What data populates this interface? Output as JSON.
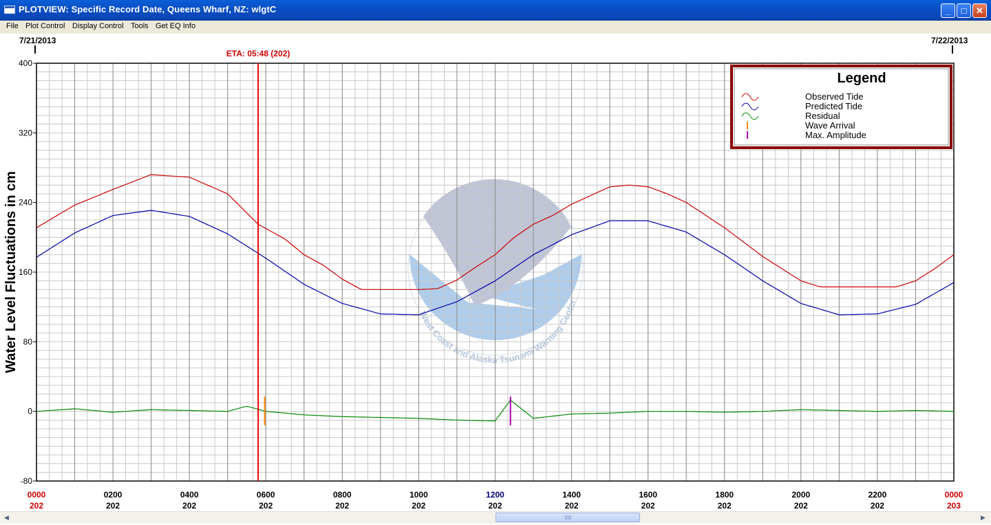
{
  "window": {
    "title": "PLOTVIEW: Specific Record Date, Queens Wharf, NZ: wlgtC",
    "buttons": [
      "minimize-icon",
      "maximize-icon",
      "close-icon"
    ]
  },
  "menu": [
    "File",
    "Plot Control",
    "Display Control",
    "Tools",
    "Get EQ Info"
  ],
  "dates": {
    "left": "7/21/2013",
    "right": "7/22/2013"
  },
  "eta_label": "ETA: 05:48 (202)",
  "legend": {
    "title": "Legend",
    "items": [
      "Observed Tide",
      "Predicted Tide",
      "Residual",
      "Wave Arrival",
      "Max. Amplitude"
    ]
  },
  "colors": {
    "observed": "#cc0000",
    "predicted": "#0000aa",
    "residual": "#008800",
    "wave_arrival": "#ff8800",
    "max_amplitude": "#aa00aa",
    "eta_line": "#ee0000",
    "legend_border": "#8b0000"
  },
  "watermark_text": "West Coast and Alaska Tsunami Warning Center",
  "chart_data": {
    "type": "line",
    "ylabel": "Water Level Fluctuations in cm",
    "ylim": [
      -80,
      400
    ],
    "yticks": [
      "400",
      "320",
      "240",
      "160",
      "80",
      "0",
      "-80"
    ],
    "xlim_hours": [
      0,
      24
    ],
    "xticks": [
      {
        "time": "0000",
        "day": "202"
      },
      {
        "time": "0200",
        "day": "202"
      },
      {
        "time": "0400",
        "day": "202"
      },
      {
        "time": "0600",
        "day": "202"
      },
      {
        "time": "0800",
        "day": "202"
      },
      {
        "time": "1000",
        "day": "202"
      },
      {
        "time": "1200",
        "day": "202"
      },
      {
        "time": "1400",
        "day": "202"
      },
      {
        "time": "1600",
        "day": "202"
      },
      {
        "time": "1800",
        "day": "202"
      },
      {
        "time": "2000",
        "day": "202"
      },
      {
        "time": "2200",
        "day": "202"
      },
      {
        "time": "0000",
        "day": "203"
      }
    ],
    "eta_hour": 5.8,
    "wave_arrival_hour": 5.97,
    "max_amplitude_hour": 12.4,
    "series": [
      {
        "name": "Observed Tide",
        "x": [
          0,
          1,
          2,
          3,
          4,
          5,
          5.8,
          6.5,
          7,
          7.5,
          8,
          8.5,
          9,
          9.5,
          10,
          10.5,
          11,
          11.5,
          12,
          12.5,
          13,
          13.5,
          14,
          15,
          15.5,
          16,
          16.5,
          17,
          18,
          19,
          20,
          20.5,
          21,
          21.5,
          22,
          22.5,
          23,
          23.5,
          24
        ],
        "y": [
          211,
          237,
          255,
          272,
          269,
          250,
          215,
          198,
          180,
          168,
          152,
          140,
          140,
          140,
          140,
          141,
          151,
          166,
          180,
          200,
          215,
          225,
          238,
          258,
          260,
          258,
          250,
          240,
          211,
          178,
          150,
          143,
          143,
          143,
          143,
          143,
          150,
          164,
          180
        ]
      },
      {
        "name": "Predicted Tide",
        "x": [
          0,
          1,
          2,
          3,
          4,
          5,
          6,
          7,
          8,
          9,
          10,
          11,
          12,
          13,
          14,
          15,
          16,
          17,
          18,
          19,
          20,
          21,
          22,
          23,
          24
        ],
        "y": [
          177,
          205,
          225,
          231,
          224,
          204,
          176,
          146,
          124,
          112,
          111,
          126,
          150,
          180,
          203,
          219,
          219,
          206,
          180,
          150,
          124,
          111,
          112,
          123,
          148
        ]
      },
      {
        "name": "Residual",
        "x": [
          0,
          1,
          2,
          3,
          4,
          5,
          5.5,
          6,
          7,
          8,
          9,
          10,
          11,
          12,
          12.4,
          13,
          14,
          15,
          16,
          17,
          18,
          19,
          20,
          21,
          22,
          23,
          24
        ],
        "y": [
          0,
          3,
          -1,
          2,
          1,
          0,
          6,
          0,
          -4,
          -6,
          -7,
          -8,
          -10,
          -11,
          13,
          -8,
          -3,
          -2,
          0,
          0,
          -1,
          0,
          2,
          1,
          0,
          1,
          0
        ]
      }
    ]
  }
}
